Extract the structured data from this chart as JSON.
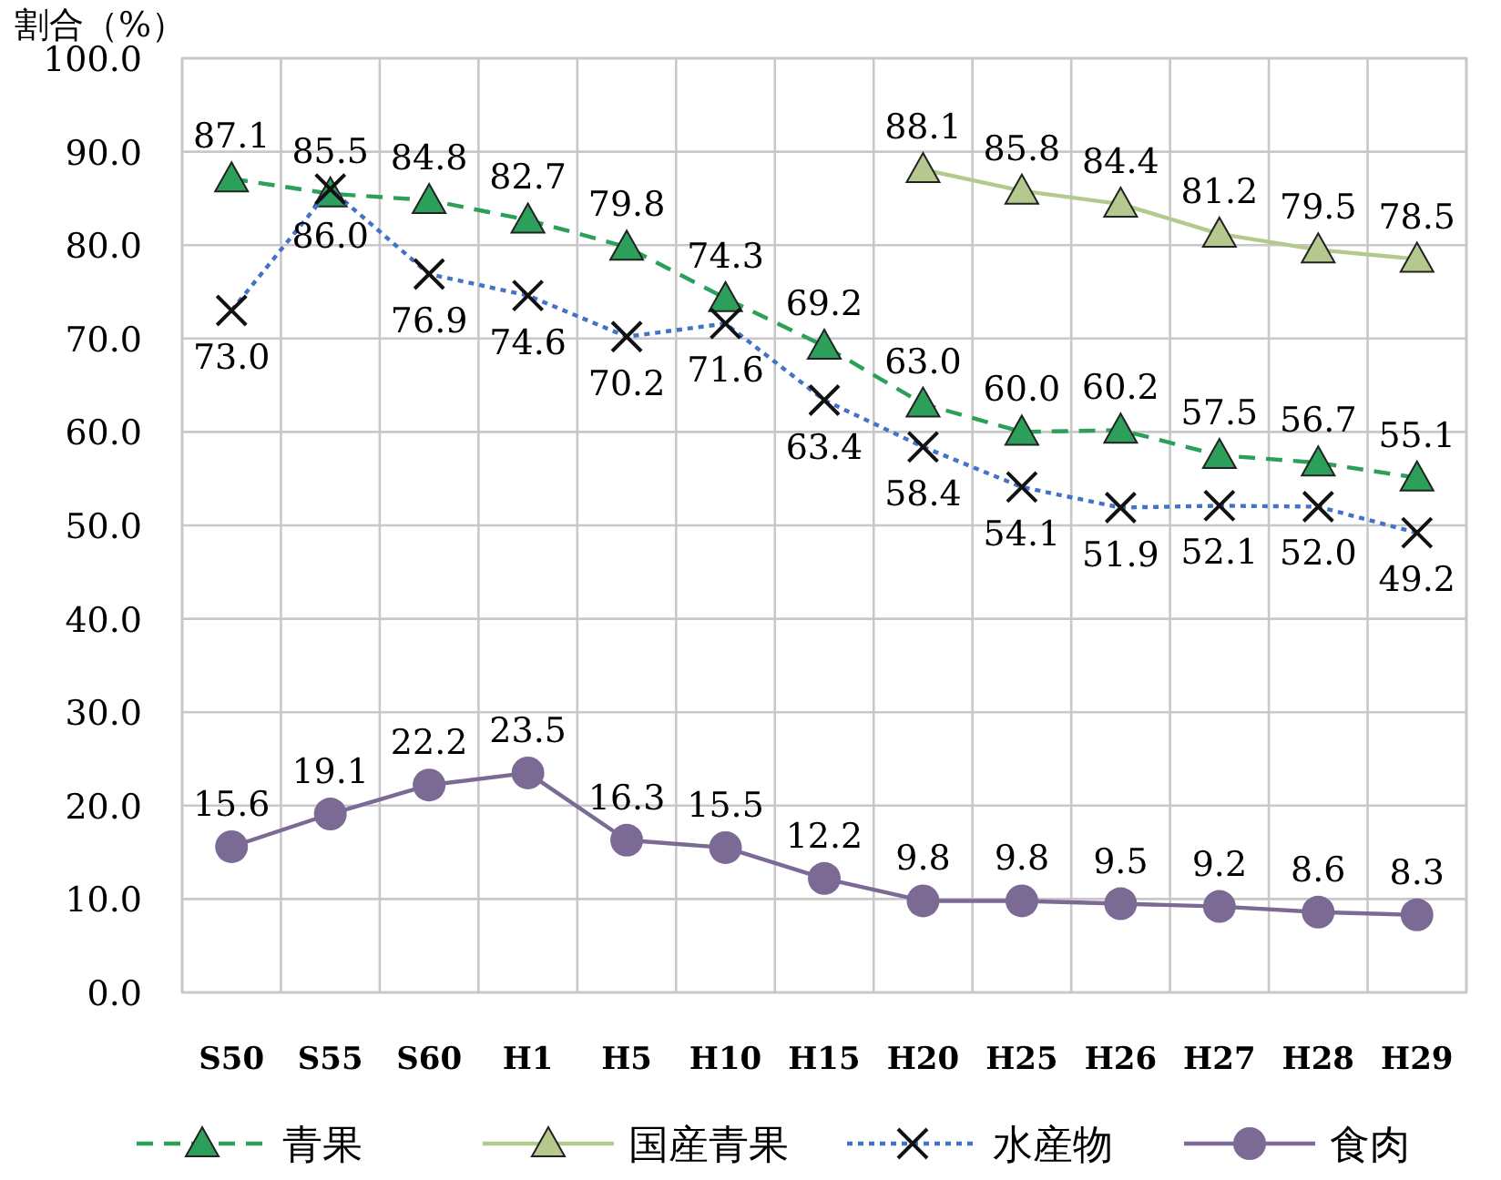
{
  "chart_data": {
    "type": "line",
    "ylabel": "割合（%）",
    "categories": [
      "S50",
      "S55",
      "S60",
      "H1",
      "H5",
      "H10",
      "H15",
      "H20",
      "H25",
      "H26",
      "H27",
      "H28",
      "H29"
    ],
    "series": [
      {
        "name": "青果",
        "color": "#2ca05a",
        "line_style": "dashed",
        "marker": "triangle",
        "values": [
          87.1,
          85.5,
          84.8,
          82.7,
          79.8,
          74.3,
          69.2,
          63.0,
          60.0,
          60.2,
          57.5,
          56.7,
          55.1
        ],
        "value_labels": [
          "87.1",
          "85.5",
          "84.8",
          "82.7",
          "79.8",
          "74.3",
          "69.2",
          "63.0",
          "60.0",
          "60.2",
          "57.5",
          "56.7",
          "55.1"
        ]
      },
      {
        "name": "国産青果",
        "color": "#b5c98e",
        "line_style": "solid",
        "marker": "triangle",
        "values": [
          null,
          null,
          null,
          null,
          null,
          null,
          null,
          88.1,
          85.8,
          84.4,
          81.2,
          79.5,
          78.5
        ],
        "value_labels": [
          null,
          null,
          null,
          null,
          null,
          null,
          null,
          "88.1",
          "85.8",
          "84.4",
          "81.2",
          "79.5",
          "78.5"
        ]
      },
      {
        "name": "水産物",
        "color": "#4472c4",
        "line_style": "dotted",
        "marker": "cross",
        "values": [
          73.0,
          86.0,
          76.9,
          74.6,
          70.2,
          71.6,
          63.4,
          58.4,
          54.1,
          51.9,
          52.1,
          52.0,
          49.2
        ],
        "value_labels": [
          "73.0",
          "86.0",
          "76.9",
          "74.6",
          "70.2",
          "71.6",
          "63.4",
          "58.4",
          "54.1",
          "51.9",
          "52.1",
          "52.0",
          "49.2"
        ]
      },
      {
        "name": "食肉",
        "color": "#7b6a93",
        "line_style": "solid",
        "marker": "circle",
        "values": [
          15.6,
          19.1,
          22.2,
          23.5,
          16.3,
          15.5,
          12.2,
          9.8,
          9.8,
          9.5,
          9.2,
          8.6,
          8.3
        ],
        "value_labels": [
          "15.6",
          "19.1",
          "22.2",
          "23.5",
          "16.3",
          "15.5",
          "12.2",
          "9.8",
          "9.8",
          "9.5",
          "9.2",
          "8.6",
          "8.3"
        ]
      }
    ],
    "ylim": [
      0,
      100
    ],
    "yticks": [
      {
        "value": 0,
        "label": "0.0"
      },
      {
        "value": 10,
        "label": "10.0"
      },
      {
        "value": 20,
        "label": "20.0"
      },
      {
        "value": 30,
        "label": "30.0"
      },
      {
        "value": 40,
        "label": "40.0"
      },
      {
        "value": 50,
        "label": "50.0"
      },
      {
        "value": 60,
        "label": "60.0"
      },
      {
        "value": 70,
        "label": "70.0"
      },
      {
        "value": 80,
        "label": "80.0"
      },
      {
        "value": 90,
        "label": "90.0"
      },
      {
        "value": 100,
        "label": "100.0"
      }
    ],
    "grid": true,
    "legend": "bottom"
  }
}
